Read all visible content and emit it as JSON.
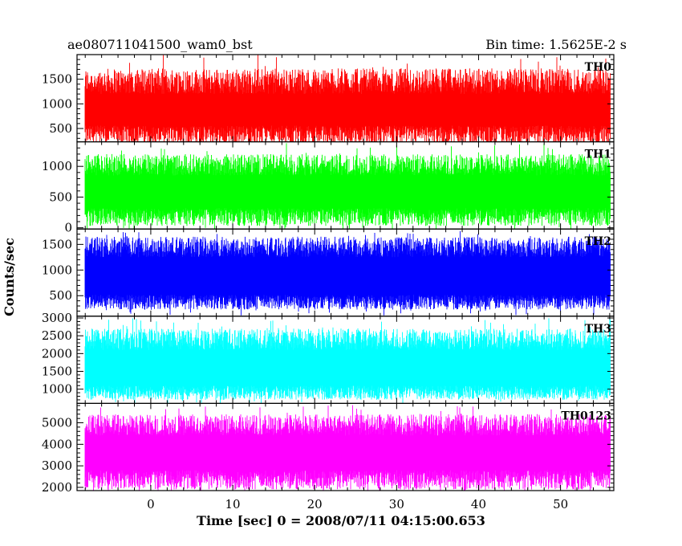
{
  "chart_data": {
    "type": "line",
    "title_left": "ae080711041500_wam0_bst",
    "title_right": "Bin time: 1.5625E-2 s",
    "xlabel": "Time [sec] 0 = 2008/07/11 04:15:00.653",
    "ylabel": "Counts/sec",
    "xlim": [
      -9,
      56.5
    ],
    "x_start": -8,
    "x_end": 56,
    "x_ticks": [
      0,
      10,
      20,
      30,
      40,
      50
    ],
    "x_minor_step": 2,
    "grid": false,
    "panels": [
      {
        "name": "TH0",
        "color": "#ff0000",
        "ylim": [
          230,
          2000
        ],
        "y_ticks": [
          500,
          1000,
          1500
        ],
        "y_minor_step": 100,
        "base": 900,
        "low_range": [
          170,
          560
        ],
        "high_range": [
          1200,
          1720
        ],
        "spikes": 2000
      },
      {
        "name": "TH1",
        "color": "#00ff00",
        "ylim": [
          -20,
          1400
        ],
        "y_ticks": [
          0,
          500,
          1000
        ],
        "y_minor_step": 100,
        "base": 600,
        "low_range": [
          30,
          320
        ],
        "high_range": [
          850,
          1200
        ],
        "spikes": 1380
      },
      {
        "name": "TH2",
        "color": "#0000ff",
        "ylim": [
          100,
          1800
        ],
        "y_ticks": [
          500,
          1000,
          1500
        ],
        "y_minor_step": 100,
        "base": 850,
        "low_range": [
          230,
          520
        ],
        "high_range": [
          1250,
          1650
        ],
        "spikes": 1760
      },
      {
        "name": "TH3",
        "color": "#00ffff",
        "ylim": [
          600,
          3050
        ],
        "y_ticks": [
          1000,
          1500,
          2000,
          2500,
          3000
        ],
        "y_minor_step": 100,
        "base": 1700,
        "low_range": [
          700,
          1100
        ],
        "high_range": [
          2100,
          2700
        ],
        "spikes": 3000
      },
      {
        "name": "TH0123",
        "color": "#ff00ff",
        "ylim": [
          1850,
          5900
        ],
        "y_ticks": [
          2000,
          3000,
          4000,
          5000
        ],
        "y_minor_step": 200,
        "base": 3600,
        "low_range": [
          1900,
          2800
        ],
        "high_range": [
          4400,
          5400
        ],
        "spikes": 5850
      }
    ]
  }
}
